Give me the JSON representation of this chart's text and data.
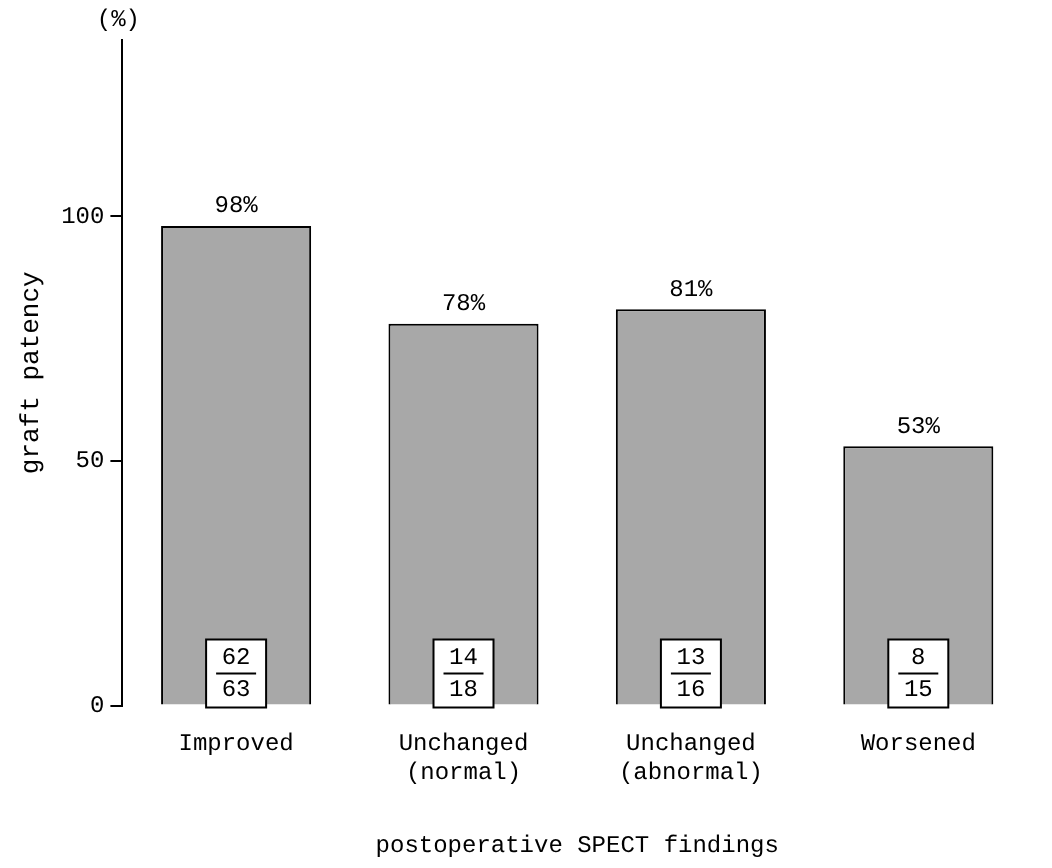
{
  "chart_data": {
    "type": "bar",
    "xlabel": "postoperative SPECT findings",
    "ylabel": "graft patency",
    "categories": [
      "Improved",
      "Unchanged (normal)",
      "Unchanged (abnormal)",
      "Worsened"
    ],
    "values": [
      98,
      78,
      81,
      53
    ],
    "color": "#a8a8a8",
    "value_labels": [
      "98%",
      "78%",
      "81%",
      "53%"
    ],
    "ylim": [
      0,
      136
    ],
    "yticks": [
      0,
      50,
      100
    ],
    "grid": false,
    "legend": false,
    "annotations": [
      "(%)",
      "62",
      "63",
      "14",
      "18",
      "13",
      "16",
      "8",
      "15"
    ]
  }
}
